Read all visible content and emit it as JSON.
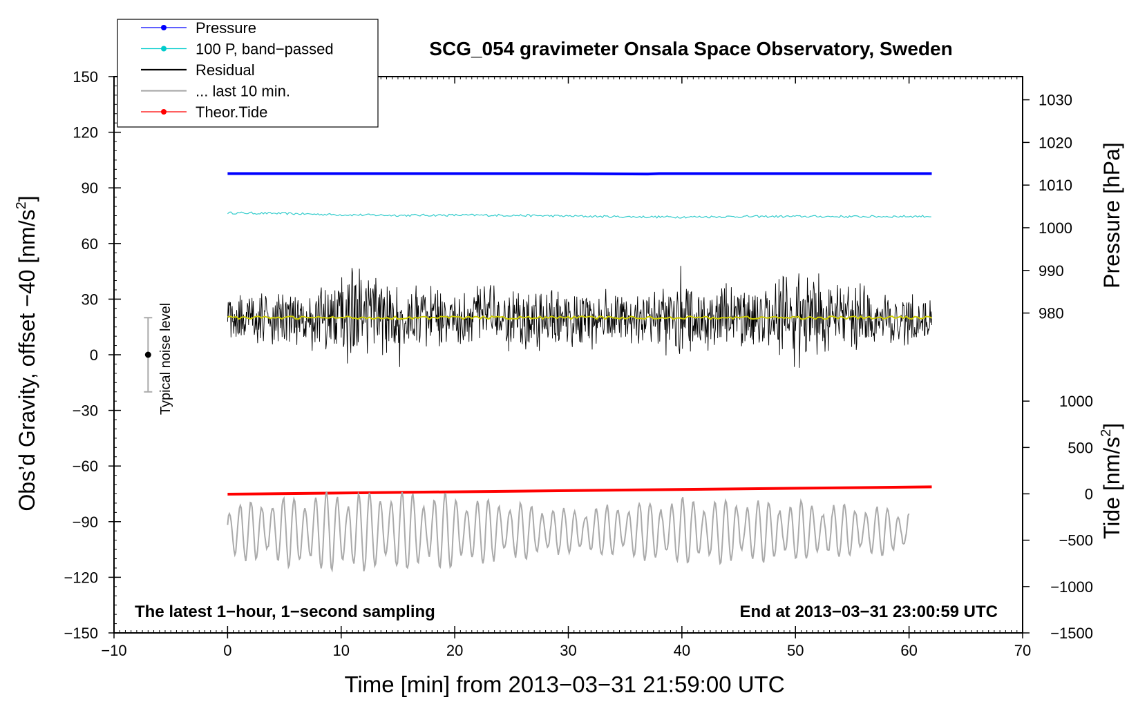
{
  "chart_data": {
    "type": "line",
    "title": "SCG_054 gravimeter Onsala Space Observatory, Sweden",
    "xlabel": "Time [min] from 2013−03−31 21:59:00 UTC",
    "ylabel_left": "Obs’d Gravity, offset −40 [nm/s",
    "ylabel_left_sup": "2",
    "ylabel_left_end": "]",
    "ylabel_pressure": "Pressure [hPa]",
    "ylabel_tide": "Tide [nm/s",
    "ylabel_tide_sup": "2",
    "ylabel_tide_end": "]",
    "xlim": [
      -10,
      70
    ],
    "ylim": [
      -150,
      150
    ],
    "x_ticks": [
      "−10",
      "0",
      "10",
      "20",
      "30",
      "40",
      "50",
      "60",
      "70"
    ],
    "y_ticks": [
      "−150",
      "−120",
      "−90",
      "−60",
      "−30",
      "0",
      "30",
      "60",
      "90",
      "120",
      "150"
    ],
    "pressure_axis": {
      "ticks": [
        "980",
        "990",
        "1000",
        "1010",
        "1020",
        "1030"
      ],
      "ref_value": 980,
      "ref_gravity": 22.5,
      "gravity_per_unit": 2.3
    },
    "tide_axis": {
      "ticks": [
        "−1500",
        "−1000",
        "−500",
        "0",
        "500",
        "1000"
      ],
      "ref_value": 0,
      "ref_gravity": -75,
      "gravity_per_unit": 0.05
    },
    "legend": {
      "position": "top-left",
      "entries": [
        {
          "label": "Pressure",
          "color": "#0000ff",
          "marker": true
        },
        {
          "label": "100 P, band−passed",
          "color": "#00cccc",
          "marker": true
        },
        {
          "label": "Residual",
          "color": "#000000",
          "marker": false
        },
        {
          "label": "... last 10 min.",
          "color": "#aaaaaa",
          "marker": false
        },
        {
          "label": "Theor.Tide",
          "color": "#ff0000",
          "marker": true
        }
      ]
    },
    "annotations": {
      "bottom_left": "The latest 1−hour, 1−second sampling",
      "bottom_right": "End at 2013−03−31 23:00:59 UTC",
      "noise_label": "Typical noise level"
    },
    "noise_bar": {
      "x": -7,
      "center": 0,
      "half_range": 20
    },
    "series": [
      {
        "name": "Pressure",
        "color": "#0000ff",
        "units": "hPa",
        "x": [
          0,
          10,
          20,
          30,
          37,
          38,
          40,
          50,
          62
        ],
        "values": [
          1012.7,
          1012.7,
          1012.7,
          1012.7,
          1012.6,
          1012.7,
          1012.7,
          1012.7,
          1012.7
        ]
      },
      {
        "name": "100 P, band−passed",
        "color": "#33cccc",
        "units": "nm/s2",
        "x": [
          0,
          5,
          10,
          15,
          20,
          25,
          30,
          35,
          40,
          45,
          50,
          55,
          60,
          62
        ],
        "values": [
          76.5,
          76.2,
          75.5,
          75.2,
          75.3,
          75.2,
          74.8,
          74.4,
          74.3,
          74.5,
          74.6,
          74.5,
          74.6,
          74.7
        ]
      },
      {
        "name": "Residual",
        "color": "#000000",
        "units": "nm/s2",
        "x_range": [
          0,
          62
        ],
        "mean": 20,
        "envelope_x": [
          0,
          5,
          10,
          11,
          15,
          20,
          25,
          30,
          35,
          40,
          45,
          50,
          55,
          60,
          62
        ],
        "envelope_amp": [
          12,
          17,
          20,
          27,
          18,
          16,
          18,
          17,
          16,
          20,
          16,
          27,
          18,
          14,
          12
        ]
      },
      {
        "name": "Residual (smoothed)",
        "color": "#cccc00",
        "units": "nm/s2",
        "x_range": [
          0,
          62
        ],
        "mean": 20
      },
      {
        "name": "Theor.Tide",
        "color": "#ff0000",
        "units": "nm/s2",
        "x": [
          0,
          62
        ],
        "values": [
          -4,
          75
        ]
      },
      {
        "name": "... last 10 min.",
        "color": "#aaaaaa",
        "units": "nm/s2",
        "x_range": [
          0,
          60
        ],
        "mean": -95,
        "envelope_x": [
          0,
          10,
          20,
          30,
          40,
          50,
          60
        ],
        "envelope_amp": [
          15,
          22,
          20,
          12,
          18,
          16,
          12
        ]
      }
    ]
  }
}
